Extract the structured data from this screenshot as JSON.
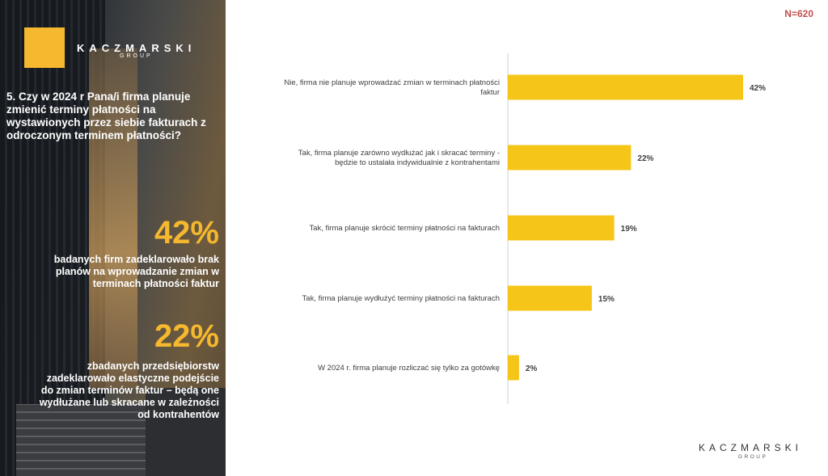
{
  "brand": {
    "name": "KACZMARSKI",
    "sub": "GROUP",
    "accent": "#f5b82e"
  },
  "sample_size": "N=620",
  "question": "5. Czy w 2024 r  Pana/i firma planuje zmienić terminy płatności na wystawionych przez siebie fakturach z odroczonym terminem płatności?",
  "highlights": [
    {
      "pct": "42%",
      "text": "badanych firm zadeklarowało brak planów na wprowadzanie zmian w terminach płatności faktur"
    },
    {
      "pct": "22%",
      "text": "zbadanych przedsiębiorstw zadeklarowało elastyczne podejście do zmian terminów faktur – będą one wydłużane lub skracane w zależności od kontrahentów"
    }
  ],
  "chart_data": {
    "type": "bar",
    "orientation": "horizontal",
    "title": "",
    "xlabel": "",
    "ylabel": "",
    "categories": [
      "Nie, firma nie planuje wprowadzać zmian w terminach płatności faktur",
      "Tak, firma planuje zarówno wydłużać jak i skracać terminy - będzie to ustalała indywidualnie z kontrahentami",
      "Tak, firma planuje skrócić terminy płatności na fakturach",
      "Tak, firma planuje wydłużyć terminy płatności na fakturach",
      "W 2024 r. firma planuje rozliczać się tylko za gotówkę"
    ],
    "values": [
      42,
      22,
      19,
      15,
      2
    ],
    "data_labels": [
      "42%",
      "22%",
      "19%",
      "15%",
      "2%"
    ],
    "xlim": [
      0,
      42
    ],
    "grid": false,
    "bar_color": "#f5c518"
  }
}
